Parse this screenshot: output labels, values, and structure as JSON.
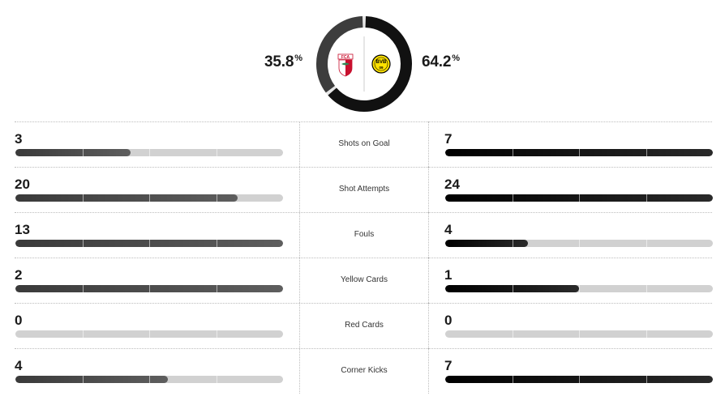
{
  "possession": {
    "home": {
      "value": "35.8",
      "unit": "%",
      "fraction": 0.358,
      "color": "#3d3d3d",
      "logo": "augsburg-crest-icon"
    },
    "away": {
      "value": "64.2",
      "unit": "%",
      "fraction": 0.642,
      "color": "#111111",
      "logo": "dortmund-crest-icon"
    }
  },
  "stats": [
    {
      "label": "Shots on Goal",
      "home": "3",
      "away": "7",
      "home_fill": 0.43,
      "away_fill": 1.0
    },
    {
      "label": "Shot Attempts",
      "home": "20",
      "away": "24",
      "home_fill": 0.83,
      "away_fill": 1.0
    },
    {
      "label": "Fouls",
      "home": "13",
      "away": "4",
      "home_fill": 1.0,
      "away_fill": 0.31
    },
    {
      "label": "Yellow Cards",
      "home": "2",
      "away": "1",
      "home_fill": 1.0,
      "away_fill": 0.5
    },
    {
      "label": "Red Cards",
      "home": "0",
      "away": "0",
      "home_fill": 0.0,
      "away_fill": 0.0
    },
    {
      "label": "Corner Kicks",
      "home": "4",
      "away": "7",
      "home_fill": 0.57,
      "away_fill": 1.0
    }
  ],
  "colors": {
    "home_bar": "#4a4a4a",
    "away_bar": "#111111",
    "track": "#d1d1d1"
  }
}
